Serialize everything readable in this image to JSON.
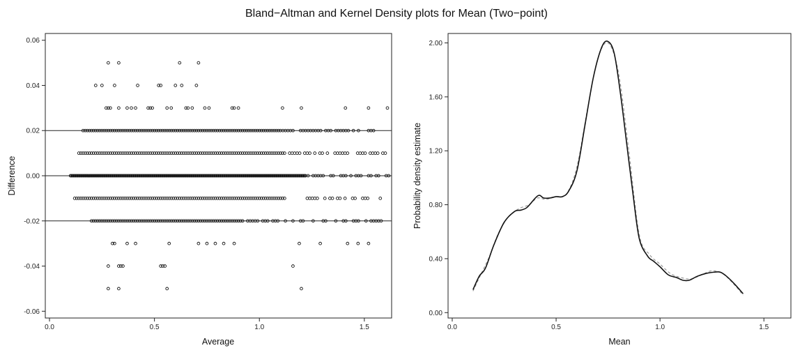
{
  "figure": {
    "title": "Bland−Altman and Kernel Density plots for Mean (Two−point)"
  },
  "chart_data": [
    {
      "type": "scatter",
      "xlabel": "Average",
      "ylabel": "Difference",
      "xlim": [
        -0.02,
        1.63
      ],
      "ylim": [
        -0.063,
        0.063
      ],
      "x_ticks": [
        0.0,
        0.5,
        1.0,
        1.5
      ],
      "x_tick_labels": [
        "0.0",
        "0.5",
        "1.0",
        "1.5"
      ],
      "y_ticks": [
        -0.06,
        -0.04,
        -0.02,
        0.0,
        0.02,
        0.04,
        0.06
      ],
      "y_tick_labels": [
        "-0.06",
        "-0.04",
        "-0.02",
        "0.00",
        "0.02",
        "0.04",
        "0.06"
      ],
      "reference_lines": [
        0.02,
        0.0,
        -0.02
      ],
      "marker": "open-circle",
      "grid": false,
      "dense_rows": [
        {
          "y": 0.0,
          "x_from": 0.1,
          "x_to": 1.22,
          "x_scatter_to": 1.62,
          "step": 0.005
        },
        {
          "y": 0.01,
          "x_from": 0.14,
          "x_to": 1.12,
          "x_scatter_to": 1.61,
          "step": 0.01
        },
        {
          "y": -0.01,
          "x_from": 0.12,
          "x_to": 1.12,
          "x_scatter_to": 1.6,
          "step": 0.01
        },
        {
          "y": 0.02,
          "x_from": 0.16,
          "x_to": 1.1,
          "x_scatter_to": 1.55,
          "step": 0.01
        },
        {
          "y": -0.02,
          "x_from": 0.2,
          "x_to": 0.92,
          "x_scatter_to": 1.59,
          "step": 0.01
        }
      ],
      "sparse_points": [
        {
          "x": 0.28,
          "y": 0.05
        },
        {
          "x": 0.33,
          "y": 0.05
        },
        {
          "x": 0.62,
          "y": 0.05
        },
        {
          "x": 0.71,
          "y": 0.05
        },
        {
          "x": 0.22,
          "y": 0.04
        },
        {
          "x": 0.25,
          "y": 0.04
        },
        {
          "x": 0.31,
          "y": 0.04
        },
        {
          "x": 0.42,
          "y": 0.04
        },
        {
          "x": 0.52,
          "y": 0.04
        },
        {
          "x": 0.53,
          "y": 0.04
        },
        {
          "x": 0.6,
          "y": 0.04
        },
        {
          "x": 0.63,
          "y": 0.04
        },
        {
          "x": 0.7,
          "y": 0.04
        },
        {
          "x": 0.27,
          "y": 0.03
        },
        {
          "x": 0.28,
          "y": 0.03
        },
        {
          "x": 0.29,
          "y": 0.03
        },
        {
          "x": 0.33,
          "y": 0.03
        },
        {
          "x": 0.37,
          "y": 0.03
        },
        {
          "x": 0.39,
          "y": 0.03
        },
        {
          "x": 0.41,
          "y": 0.03
        },
        {
          "x": 0.47,
          "y": 0.03
        },
        {
          "x": 0.48,
          "y": 0.03
        },
        {
          "x": 0.49,
          "y": 0.03
        },
        {
          "x": 0.56,
          "y": 0.03
        },
        {
          "x": 0.58,
          "y": 0.03
        },
        {
          "x": 0.65,
          "y": 0.03
        },
        {
          "x": 0.66,
          "y": 0.03
        },
        {
          "x": 0.68,
          "y": 0.03
        },
        {
          "x": 0.74,
          "y": 0.03
        },
        {
          "x": 0.76,
          "y": 0.03
        },
        {
          "x": 0.87,
          "y": 0.03
        },
        {
          "x": 0.88,
          "y": 0.03
        },
        {
          "x": 0.9,
          "y": 0.03
        },
        {
          "x": 1.11,
          "y": 0.03
        },
        {
          "x": 1.2,
          "y": 0.03
        },
        {
          "x": 1.41,
          "y": 0.03
        },
        {
          "x": 1.52,
          "y": 0.03
        },
        {
          "x": 1.61,
          "y": 0.03
        },
        {
          "x": 0.3,
          "y": -0.03
        },
        {
          "x": 0.31,
          "y": -0.03
        },
        {
          "x": 0.37,
          "y": -0.03
        },
        {
          "x": 0.41,
          "y": -0.03
        },
        {
          "x": 0.57,
          "y": -0.03
        },
        {
          "x": 0.71,
          "y": -0.03
        },
        {
          "x": 0.75,
          "y": -0.03
        },
        {
          "x": 0.79,
          "y": -0.03
        },
        {
          "x": 0.83,
          "y": -0.03
        },
        {
          "x": 0.88,
          "y": -0.03
        },
        {
          "x": 1.19,
          "y": -0.03
        },
        {
          "x": 1.29,
          "y": -0.03
        },
        {
          "x": 1.42,
          "y": -0.03
        },
        {
          "x": 1.47,
          "y": -0.03
        },
        {
          "x": 1.52,
          "y": -0.03
        },
        {
          "x": 0.28,
          "y": -0.04
        },
        {
          "x": 0.33,
          "y": -0.04
        },
        {
          "x": 0.34,
          "y": -0.04
        },
        {
          "x": 0.35,
          "y": -0.04
        },
        {
          "x": 0.53,
          "y": -0.04
        },
        {
          "x": 0.54,
          "y": -0.04
        },
        {
          "x": 0.55,
          "y": -0.04
        },
        {
          "x": 1.16,
          "y": -0.04
        },
        {
          "x": 0.28,
          "y": -0.05
        },
        {
          "x": 0.33,
          "y": -0.05
        },
        {
          "x": 0.56,
          "y": -0.05
        },
        {
          "x": 1.2,
          "y": -0.05
        }
      ]
    },
    {
      "type": "line",
      "xlabel": "Mean",
      "ylabel": "Probability density estimate",
      "xlim": [
        -0.02,
        1.63
      ],
      "ylim": [
        -0.04,
        2.07
      ],
      "x_ticks": [
        0.0,
        0.5,
        1.0,
        1.5
      ],
      "x_tick_labels": [
        "0.0",
        "0.5",
        "1.0",
        "1.5"
      ],
      "y_ticks": [
        0.0,
        0.4,
        0.8,
        1.2,
        1.6,
        2.0
      ],
      "y_tick_labels": [
        "0.00",
        "0.40",
        "0.80",
        "1.20",
        "1.60",
        "2.00"
      ],
      "grid": false,
      "series": [
        {
          "style": "solid",
          "color": "#111111",
          "x": [
            0.1,
            0.13,
            0.16,
            0.2,
            0.25,
            0.3,
            0.33,
            0.36,
            0.4,
            0.42,
            0.44,
            0.47,
            0.5,
            0.53,
            0.56,
            0.6,
            0.64,
            0.68,
            0.72,
            0.75,
            0.78,
            0.81,
            0.84,
            0.87,
            0.9,
            0.94,
            0.97,
            1.0,
            1.04,
            1.08,
            1.11,
            1.14,
            1.18,
            1.22,
            1.26,
            1.29,
            1.32,
            1.36,
            1.4
          ],
          "y": [
            0.17,
            0.27,
            0.33,
            0.5,
            0.67,
            0.75,
            0.76,
            0.78,
            0.85,
            0.87,
            0.85,
            0.85,
            0.86,
            0.86,
            0.9,
            1.05,
            1.4,
            1.75,
            1.97,
            2.01,
            1.92,
            1.62,
            1.25,
            0.88,
            0.55,
            0.42,
            0.38,
            0.34,
            0.28,
            0.26,
            0.24,
            0.24,
            0.27,
            0.29,
            0.3,
            0.3,
            0.27,
            0.21,
            0.14
          ]
        },
        {
          "style": "dashed",
          "color": "#9a9a9a",
          "x": [
            0.1,
            0.14,
            0.18,
            0.22,
            0.27,
            0.32,
            0.37,
            0.41,
            0.45,
            0.5,
            0.55,
            0.6,
            0.65,
            0.7,
            0.75,
            0.8,
            0.85,
            0.9,
            0.95,
            1.0,
            1.05,
            1.1,
            1.15,
            1.2,
            1.25,
            1.3,
            1.35,
            1.4
          ],
          "y": [
            0.16,
            0.29,
            0.42,
            0.58,
            0.71,
            0.77,
            0.8,
            0.85,
            0.84,
            0.86,
            0.88,
            1.08,
            1.5,
            1.88,
            2.0,
            1.78,
            1.2,
            0.58,
            0.43,
            0.36,
            0.29,
            0.26,
            0.25,
            0.28,
            0.31,
            0.29,
            0.22,
            0.13
          ]
        }
      ]
    }
  ]
}
